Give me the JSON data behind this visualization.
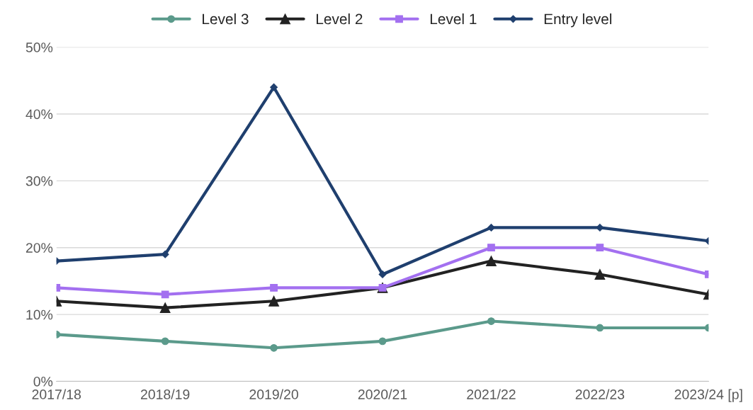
{
  "chart_data": {
    "type": "line",
    "categories": [
      "2017/18",
      "2018/19",
      "2019/20",
      "2020/21",
      "2021/22",
      "2022/23",
      "2023/24 [p]"
    ],
    "series": [
      {
        "name": "Level 3",
        "color": "#5b9a8b",
        "marker": "circle",
        "values": [
          7,
          6,
          5,
          6,
          9,
          8,
          8
        ]
      },
      {
        "name": "Level 2",
        "color": "#222222",
        "marker": "triangle",
        "values": [
          12,
          11,
          12,
          14,
          18,
          16,
          13
        ]
      },
      {
        "name": "Level 1",
        "color": "#a370f0",
        "marker": "square",
        "values": [
          14,
          13,
          14,
          14,
          20,
          20,
          16
        ]
      },
      {
        "name": "Entry level",
        "color": "#1f3f6e",
        "marker": "diamond",
        "values": [
          18,
          19,
          44,
          16,
          23,
          23,
          21
        ]
      }
    ],
    "ylim": [
      0,
      50
    ],
    "yticks": [
      {
        "value": 0,
        "label": "0%"
      },
      {
        "value": 10,
        "label": "10%"
      },
      {
        "value": 20,
        "label": "20%"
      },
      {
        "value": 30,
        "label": "30%"
      },
      {
        "value": 40,
        "label": "40%"
      },
      {
        "value": 50,
        "label": "50%"
      }
    ],
    "grid": "y",
    "legend": "top",
    "line_style": "solid"
  }
}
